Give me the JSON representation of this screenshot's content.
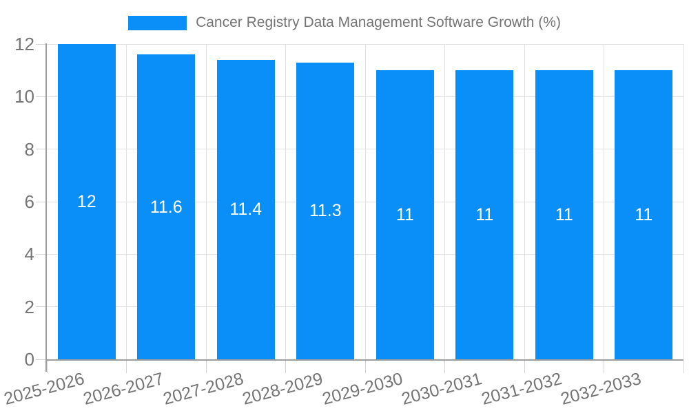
{
  "chart_data": {
    "type": "bar",
    "title": "Cancer Registry Data Management Software Growth (%)",
    "categories": [
      "2025-2026",
      "2026-2027",
      "2027-2028",
      "2028-2029",
      "2029-2030",
      "2030-2031",
      "2031-2032",
      "2032-2033"
    ],
    "values": [
      12,
      11.6,
      11.4,
      11.3,
      11,
      11,
      11,
      11
    ],
    "xlabel": "",
    "ylabel": "",
    "ylim": [
      0,
      12
    ],
    "yticks": [
      0,
      2,
      4,
      6,
      8,
      10,
      12
    ],
    "grid": true,
    "legend_position": "top-center",
    "x_label_rotation_deg": -15,
    "colors": {
      "bar": "#0a8ff9",
      "bar_label_text": "#ffffff",
      "axis_text": "#757575",
      "gridline": "#e2e2e2",
      "tick": "#d6d6d6",
      "axis_line": "#9e9e9e",
      "background": "#ffffff"
    }
  }
}
